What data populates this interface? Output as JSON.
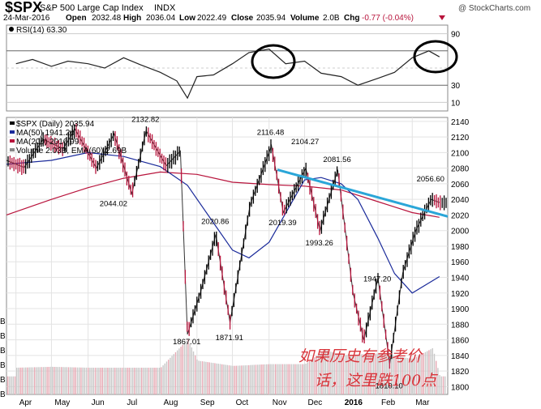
{
  "header": {
    "symbol": "$SPX",
    "name": "S&P 500 Large Cap Index",
    "exchange": "INDX",
    "date": "24-Mar-2016",
    "open_label": "Open",
    "open": "2032.48",
    "high_label": "High",
    "high": "2036.04",
    "low_label": "Low",
    "low": "2022.49",
    "close_label": "Close",
    "close": "2035.94",
    "volume_label": "Volume",
    "volume": "2.0B",
    "chg_label": "Chg",
    "chg": "-0.77 (-0.04%)",
    "watermark": "@ StockCharts.com"
  },
  "colors": {
    "price_up": "#000000",
    "price_down": "#b8143c",
    "ma50": "#1a2a9a",
    "ma200": "#b8143c",
    "trendline": "#2aa6d8",
    "volume": "#c8c8c8",
    "volume_down": "#e6a9b4",
    "annotation": "#d9343a"
  },
  "annotation": {
    "line1": "如果历史有参考价",
    "line2": "话，这里跌100点"
  },
  "chart_data": [
    {
      "type": "line",
      "title": "RSI(14) 63.30",
      "ylim": [
        0,
        100
      ],
      "y_ticks": [
        10,
        30,
        50,
        70,
        90
      ],
      "y_tick_labels": [
        "10",
        "30",
        "",
        "",
        "90"
      ],
      "x": [
        "2015-04-01",
        "2015-04-15",
        "2015-05-01",
        "2015-05-15",
        "2015-06-01",
        "2015-06-15",
        "2015-07-01",
        "2015-07-15",
        "2015-08-01",
        "2015-08-15",
        "2015-08-24",
        "2015-09-01",
        "2015-09-15",
        "2015-10-01",
        "2015-10-15",
        "2015-11-01",
        "2015-11-15",
        "2015-12-01",
        "2015-12-15",
        "2016-01-01",
        "2016-01-15",
        "2016-02-01",
        "2016-02-15",
        "2016-03-01",
        "2016-03-15",
        "2016-03-24"
      ],
      "series": [
        {
          "values": [
            55,
            60,
            52,
            58,
            55,
            50,
            62,
            54,
            45,
            35,
            15,
            40,
            42,
            55,
            68,
            72,
            55,
            58,
            44,
            40,
            30,
            38,
            45,
            62,
            70,
            63
          ]
        }
      ],
      "circled_regions": [
        "2015-11",
        "2016-03"
      ]
    },
    {
      "type": "line",
      "title": "$SPX (Daily) 2035.94",
      "legend": [
        "$SPX (Daily) 2035.94",
        "MA(50) 1941.24",
        "MA(200) 2016.99",
        "Volume 2.03B, EMA(60) 2.69B"
      ],
      "ylim": [
        1790,
        2145
      ],
      "y_ticks": [
        1800,
        1820,
        1840,
        1860,
        1880,
        1900,
        1920,
        1940,
        1960,
        1980,
        2000,
        2020,
        2040,
        2060,
        2080,
        2100,
        2120,
        2140
      ],
      "x_tick_labels": [
        "Apr",
        "May",
        "Jun",
        "Jul",
        "Aug",
        "Sep",
        "Oct",
        "Nov",
        "Dec",
        "2016",
        "Feb",
        "Mar"
      ],
      "x_tick_dates": [
        "2015-04-01",
        "2015-05-01",
        "2015-06-01",
        "2015-07-01",
        "2015-08-01",
        "2015-09-01",
        "2015-10-01",
        "2015-11-01",
        "2015-12-01",
        "2016-01-01",
        "2016-02-01",
        "2016-03-01"
      ],
      "x_range": [
        "2015-03-24",
        "2016-03-31"
      ],
      "series": [
        {
          "name": "$SPX (Daily)",
          "x": [
            "2015-03-24",
            "2015-04-08",
            "2015-04-24",
            "2015-05-11",
            "2015-05-21",
            "2015-06-08",
            "2015-06-23",
            "2015-07-08",
            "2015-07-20",
            "2015-08-06",
            "2015-08-18",
            "2015-08-24",
            "2015-09-04",
            "2015-09-17",
            "2015-09-29",
            "2015-10-16",
            "2015-11-03",
            "2015-11-13",
            "2015-12-02",
            "2015-12-14",
            "2015-12-29",
            "2016-01-11",
            "2016-01-20",
            "2016-02-01",
            "2016-02-11",
            "2016-02-22",
            "2016-03-04",
            "2016-03-17",
            "2016-03-24"
          ],
          "values": [
            2090,
            2081,
            2117,
            2105,
            2130,
            2080,
            2124,
            2047,
            2128,
            2083,
            2102,
            1867,
            1921,
            1995,
            1882,
            2033,
            2109,
            2023,
            2080,
            2000,
            2078,
            1920,
            1860,
            1939,
            1829,
            1946,
            2000,
            2040,
            2036
          ]
        },
        {
          "name": "MA(50)",
          "x": [
            "2015-03-24",
            "2015-05-01",
            "2015-06-01",
            "2015-07-01",
            "2015-08-01",
            "2015-08-24",
            "2015-09-15",
            "2015-10-01",
            "2015-10-15",
            "2015-11-01",
            "2015-12-01",
            "2015-12-15",
            "2016-01-01",
            "2016-01-15",
            "2016-02-01",
            "2016-02-15",
            "2016-03-01",
            "2016-03-24"
          ],
          "values": [
            2085,
            2090,
            2100,
            2095,
            2082,
            2058,
            2010,
            1975,
            1965,
            1985,
            2065,
            2068,
            2060,
            2040,
            1990,
            1945,
            1920,
            1941
          ]
        },
        {
          "name": "MA(200)",
          "x": [
            "2015-03-24",
            "2015-05-01",
            "2015-06-01",
            "2015-07-01",
            "2015-08-01",
            "2015-09-01",
            "2015-10-01",
            "2015-11-01",
            "2015-12-01",
            "2016-01-01",
            "2016-02-01",
            "2016-03-01",
            "2016-03-24"
          ],
          "values": [
            2020,
            2040,
            2055,
            2067,
            2075,
            2072,
            2062,
            2059,
            2057,
            2052,
            2037,
            2023,
            2017
          ]
        }
      ],
      "volume": {
        "x": [
          "2015-04-01",
          "2015-05-01",
          "2015-06-01",
          "2015-07-01",
          "2015-08-01",
          "2015-08-24",
          "2015-09-01",
          "2015-10-01",
          "2015-11-01",
          "2015-12-01",
          "2015-12-18",
          "2016-01-01",
          "2016-02-01",
          "2016-03-01",
          "2016-03-18",
          "2016-03-24"
        ],
        "values": [
          3.0,
          3.1,
          3.0,
          3.0,
          3.0,
          6.2,
          3.8,
          3.2,
          3.4,
          3.4,
          5.0,
          4.4,
          4.6,
          4.0,
          5.2,
          2.03
        ]
      },
      "price_labels": [
        {
          "x": "2015-07-20",
          "label": "2132.82"
        },
        {
          "x": "2015-11-03",
          "label": "2116.48"
        },
        {
          "x": "2015-12-02",
          "label": "2104.27"
        },
        {
          "x": "2015-12-29",
          "label": "2081.56"
        },
        {
          "x": "2016-03-17",
          "label": "2056.60"
        },
        {
          "x": "2015-06-23",
          "label": "2044.02"
        },
        {
          "x": "2015-09-17",
          "label": "2020.86"
        },
        {
          "x": "2015-11-13",
          "label": "2019.39"
        },
        {
          "x": "2015-12-14",
          "label": "1993.26"
        },
        {
          "x": "2016-02-01",
          "label": "1947.20"
        },
        {
          "x": "2015-08-24",
          "label": "1867.01"
        },
        {
          "x": "2015-09-29",
          "label": "1871.91"
        },
        {
          "x": "2016-02-11",
          "label": "1810.10"
        }
      ],
      "trendline": {
        "x": [
          "2015-11-08",
          "2016-03-31"
        ],
        "values": [
          2078,
          2018
        ]
      }
    }
  ]
}
